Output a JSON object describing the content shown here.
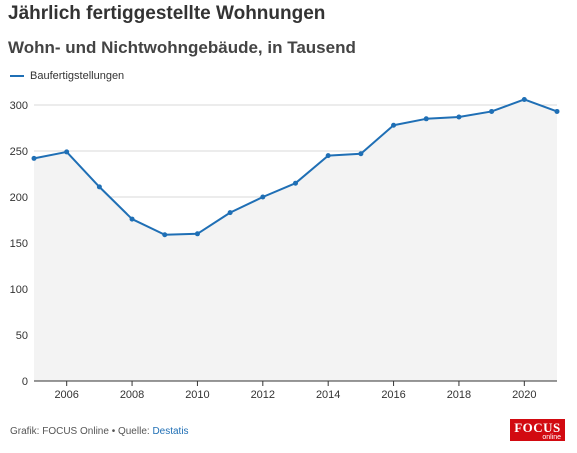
{
  "title": "Jährlich fertiggestellte Wohnungen",
  "subtitle": "Wohn- und Nichtwohngebäude, in Tausend",
  "footer": {
    "credit": "Grafik: FOCUS Online • Quelle: ",
    "source_link": "Destatis"
  },
  "logo": {
    "main": "FOCUS",
    "sub": "online"
  },
  "colors": {
    "series": "#1f6fb5",
    "link": "#1f6fb5",
    "area": "#f3f3f3",
    "grid": "#d9d9d9"
  },
  "chart_data": {
    "type": "line",
    "title": "Jährlich fertiggestellte Wohnungen",
    "subtitle": "Wohn- und Nichtwohngebäude, in Tausend",
    "legend_position": "top-left",
    "grid": true,
    "xlim": [
      2005,
      2021
    ],
    "ylim": [
      0,
      300
    ],
    "x_ticks": [
      2006,
      2008,
      2010,
      2012,
      2014,
      2016,
      2018,
      2020
    ],
    "y_ticks": [
      0,
      50,
      100,
      150,
      200,
      250,
      300
    ],
    "x": [
      2005,
      2006,
      2007,
      2008,
      2009,
      2010,
      2011,
      2012,
      2013,
      2014,
      2015,
      2016,
      2017,
      2018,
      2019,
      2020,
      2021
    ],
    "series": [
      {
        "name": "Baufertigstellungen",
        "values": [
          242,
          249,
          211,
          176,
          159,
          160,
          183,
          200,
          215,
          245,
          247,
          278,
          285,
          287,
          293,
          306,
          293
        ]
      }
    ]
  }
}
